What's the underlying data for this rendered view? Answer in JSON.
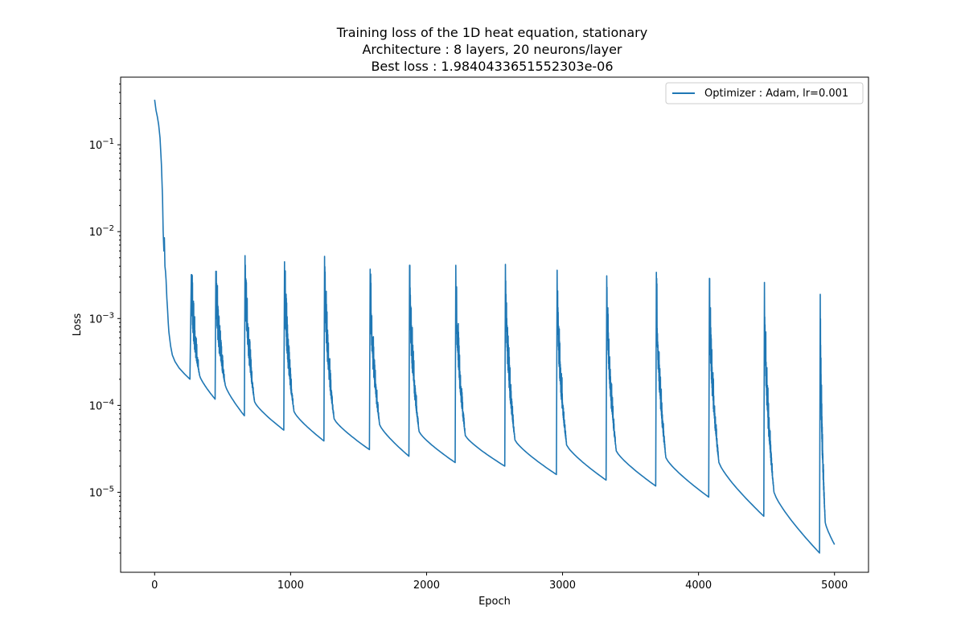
{
  "chart_data": {
    "type": "line",
    "title": [
      "Training loss of the 1D heat equation, stationary",
      "Architecture : 8 layers, 20 neurons/layer",
      "Best loss : 1.9840433651552303e-06"
    ],
    "xlabel": "Epoch",
    "ylabel": "Loss",
    "xlim": [
      -250,
      5250
    ],
    "ylim": [
      1.2e-06,
      0.6
    ],
    "yscale": "log",
    "xticks": [
      0,
      1000,
      2000,
      3000,
      4000,
      5000
    ],
    "xtick_labels": [
      "0",
      "1000",
      "2000",
      "3000",
      "4000",
      "5000"
    ],
    "yticks": [
      1e-05,
      0.0001,
      0.001,
      0.01,
      0.1
    ],
    "ytick_labels": [
      {
        "base": "10",
        "exp": "−5"
      },
      {
        "base": "10",
        "exp": "−4"
      },
      {
        "base": "10",
        "exp": "−3"
      },
      {
        "base": "10",
        "exp": "−2"
      },
      {
        "base": "10",
        "exp": "−1"
      }
    ],
    "grid": false,
    "legend_position": "upper-right",
    "series": [
      {
        "name": "Optimizer : Adam, lr=0.001",
        "color": "#1f77b4",
        "initial_points": [
          [
            0,
            0.33
          ],
          [
            10,
            0.25
          ],
          [
            20,
            0.21
          ],
          [
            30,
            0.17
          ],
          [
            40,
            0.12
          ],
          [
            50,
            0.06
          ],
          [
            58,
            0.025
          ],
          [
            63,
            0.01
          ],
          [
            68,
            0.006
          ],
          [
            72,
            0.0085
          ],
          [
            76,
            0.004
          ],
          [
            80,
            0.0035
          ],
          [
            84,
            0.0028
          ],
          [
            90,
            0.0017
          ],
          [
            95,
            0.0013
          ],
          [
            100,
            0.0009
          ],
          [
            105,
            0.0007
          ],
          [
            110,
            0.0006
          ],
          [
            118,
            0.00048
          ],
          [
            130,
            0.00038
          ],
          [
            150,
            0.00032
          ],
          [
            180,
            0.00027
          ],
          [
            220,
            0.00023
          ],
          [
            260,
            0.0002
          ]
        ],
        "cycles": [
          {
            "start": 270,
            "peak": 0.0032,
            "floor_start": 0.00022,
            "end": 445,
            "floor_end": 0.000118
          },
          {
            "start": 450,
            "peak": 0.0035,
            "floor_start": 0.00017,
            "end": 660,
            "floor_end": 7.6e-05
          },
          {
            "start": 665,
            "peak": 0.0053,
            "floor_start": 0.00011,
            "end": 950,
            "floor_end": 5.2e-05
          },
          {
            "start": 955,
            "peak": 0.0045,
            "floor_start": 8.5e-05,
            "end": 1245,
            "floor_end": 3.9e-05
          },
          {
            "start": 1250,
            "peak": 0.0052,
            "floor_start": 7e-05,
            "end": 1580,
            "floor_end": 3.1e-05
          },
          {
            "start": 1585,
            "peak": 0.0037,
            "floor_start": 6e-05,
            "end": 1870,
            "floor_end": 2.6e-05
          },
          {
            "start": 1875,
            "peak": 0.0041,
            "floor_start": 5e-05,
            "end": 2210,
            "floor_end": 2.2e-05
          },
          {
            "start": 2215,
            "peak": 0.0041,
            "floor_start": 4.5e-05,
            "end": 2575,
            "floor_end": 2e-05
          },
          {
            "start": 2580,
            "peak": 0.0042,
            "floor_start": 4e-05,
            "end": 2955,
            "floor_end": 1.6e-05
          },
          {
            "start": 2960,
            "peak": 0.0036,
            "floor_start": 3.5e-05,
            "end": 3320,
            "floor_end": 1.38e-05
          },
          {
            "start": 3325,
            "peak": 0.0031,
            "floor_start": 3e-05,
            "end": 3685,
            "floor_end": 1.18e-05
          },
          {
            "start": 3690,
            "peak": 0.0034,
            "floor_start": 2.5e-05,
            "end": 4075,
            "floor_end": 8.8e-06
          },
          {
            "start": 4080,
            "peak": 0.0029,
            "floor_start": 2.2e-05,
            "end": 4480,
            "floor_end": 5.3e-06
          },
          {
            "start": 4485,
            "peak": 0.0026,
            "floor_start": 1e-05,
            "end": 4890,
            "floor_end": 2e-06
          },
          {
            "start": 4895,
            "peak": 0.0019,
            "floor_start": 4.5e-06,
            "end": 5000,
            "floor_end": 2.5e-06
          }
        ]
      }
    ]
  }
}
